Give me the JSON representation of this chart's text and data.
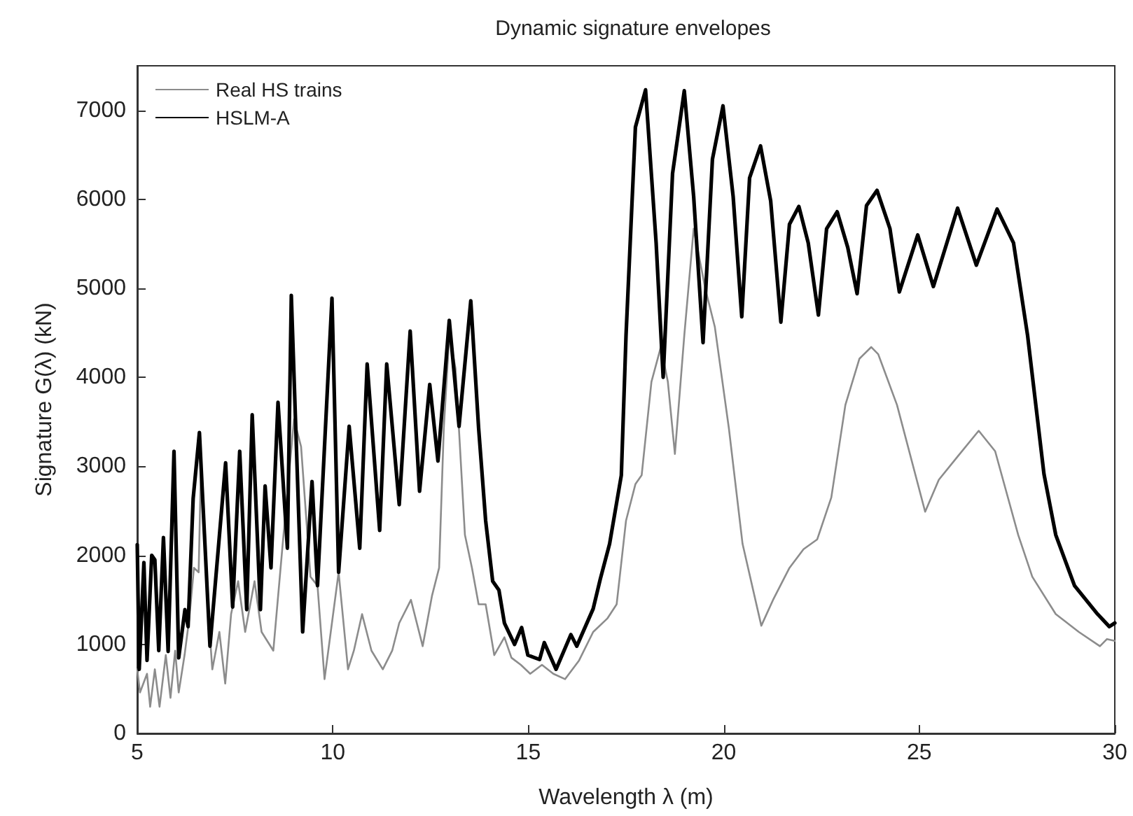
{
  "chart_data": {
    "type": "line",
    "title": "Dynamic signature envelopes",
    "xlabel": "Wavelength λ (m)",
    "ylabel": "Signature G(λ) (kN)",
    "xlim": [
      5,
      30
    ],
    "xticks": [
      5,
      10,
      15,
      20,
      25,
      30
    ],
    "ylim": [
      0,
      7500
    ],
    "yticks": [
      0,
      1000,
      2000,
      3000,
      4000,
      5000,
      6000,
      7000
    ],
    "grid": false,
    "legend": "top left",
    "marker": "none",
    "line_style": "solid",
    "series": [
      {
        "name": "Real HS trains",
        "color": "#8c8c8c",
        "x": [
          5.0,
          5.07,
          5.25,
          5.33,
          5.45,
          5.57,
          5.73,
          5.85,
          5.97,
          6.06,
          6.21,
          6.33,
          6.45,
          6.57,
          6.63,
          6.8,
          6.92,
          7.1,
          7.25,
          7.4,
          7.58,
          7.76,
          8.0,
          8.18,
          8.48,
          8.72,
          9.01,
          9.19,
          9.43,
          9.61,
          9.79,
          10.15,
          10.39,
          10.54,
          10.75,
          10.99,
          11.28,
          11.52,
          11.7,
          12.0,
          12.3,
          12.54,
          12.72,
          12.84,
          12.98,
          13.14,
          13.38,
          13.56,
          13.73,
          13.91,
          14.13,
          14.39,
          14.57,
          14.81,
          15.05,
          15.35,
          15.64,
          15.94,
          16.3,
          16.66,
          17.02,
          17.26,
          17.5,
          17.74,
          17.9,
          18.15,
          18.39,
          18.57,
          18.75,
          18.99,
          19.23,
          19.53,
          19.77,
          20.13,
          20.48,
          20.96,
          21.26,
          21.68,
          22.04,
          22.39,
          22.75,
          23.11,
          23.47,
          23.77,
          23.95,
          24.43,
          25.15,
          25.5,
          25.98,
          26.52,
          26.94,
          27.53,
          27.89,
          28.49,
          29.08,
          29.62,
          29.8,
          30.0
        ],
        "values": [
          720,
          460,
          670,
          300,
          720,
          300,
          880,
          400,
          930,
          460,
          880,
          1290,
          1860,
          1810,
          3010,
          1450,
          720,
          1140,
          560,
          1340,
          1710,
          1140,
          1710,
          1140,
          930,
          2130,
          3530,
          3220,
          1760,
          1660,
          610,
          1810,
          720,
          930,
          1340,
          930,
          720,
          930,
          1240,
          1500,
          980,
          1550,
          1860,
          3430,
          4470,
          4100,
          2230,
          1860,
          1450,
          1450,
          880,
          1080,
          850,
          770,
          670,
          770,
          670,
          610,
          820,
          1140,
          1290,
          1450,
          2390,
          2800,
          2900,
          3950,
          4340,
          3950,
          3140,
          4470,
          5670,
          4990,
          4570,
          3430,
          2130,
          1210,
          1500,
          1860,
          2070,
          2180,
          2650,
          3690,
          4210,
          4340,
          4260,
          3690,
          2490,
          2850,
          3110,
          3400,
          3170,
          2230,
          1760,
          1340,
          1140,
          980,
          1060,
          1040
        ]
      },
      {
        "name": "HSLM-A",
        "color": "#000000",
        "x": [
          5.0,
          5.05,
          5.17,
          5.25,
          5.37,
          5.45,
          5.55,
          5.67,
          5.79,
          5.94,
          6.06,
          6.22,
          6.3,
          6.43,
          6.59,
          6.86,
          7.26,
          7.44,
          7.62,
          7.8,
          7.94,
          8.15,
          8.27,
          8.42,
          8.6,
          8.84,
          8.94,
          9.23,
          9.47,
          9.61,
          9.98,
          10.15,
          10.42,
          10.69,
          10.88,
          11.2,
          11.38,
          11.7,
          11.98,
          12.22,
          12.48,
          12.69,
          12.98,
          13.23,
          13.53,
          13.73,
          13.91,
          14.09,
          14.25,
          14.39,
          14.65,
          14.83,
          14.99,
          15.29,
          15.41,
          15.71,
          16.09,
          16.24,
          16.66,
          16.84,
          17.08,
          17.38,
          17.5,
          17.74,
          18.0,
          18.27,
          18.45,
          18.69,
          18.99,
          19.23,
          19.47,
          19.71,
          19.98,
          20.24,
          20.46,
          20.66,
          20.94,
          21.2,
          21.46,
          21.68,
          21.92,
          22.16,
          22.42,
          22.63,
          22.9,
          23.17,
          23.41,
          23.65,
          23.92,
          24.25,
          24.49,
          24.96,
          25.36,
          25.98,
          26.46,
          26.99,
          27.41,
          27.77,
          28.19,
          28.49,
          28.97,
          29.56,
          29.86,
          30.0
        ],
        "values": [
          2120,
          720,
          1920,
          820,
          2000,
          1950,
          930,
          2200,
          920,
          3170,
          850,
          1390,
          1200,
          2640,
          3380,
          980,
          3040,
          1420,
          3170,
          1390,
          3580,
          1390,
          2780,
          1860,
          3720,
          2080,
          4920,
          1140,
          2830,
          1660,
          4890,
          1810,
          3450,
          2080,
          4150,
          2280,
          4150,
          2570,
          4520,
          2720,
          3920,
          3060,
          4640,
          3450,
          4860,
          3430,
          2390,
          1710,
          1610,
          1240,
          1000,
          1190,
          880,
          830,
          1020,
          720,
          1110,
          980,
          1400,
          1730,
          2130,
          2900,
          4470,
          6810,
          7230,
          5510,
          4000,
          6290,
          7220,
          6030,
          4390,
          6450,
          7050,
          6030,
          4680,
          6240,
          6600,
          5980,
          4620,
          5720,
          5920,
          5510,
          4700,
          5670,
          5860,
          5460,
          4940,
          5930,
          6100,
          5670,
          4960,
          5600,
          5020,
          5900,
          5260,
          5890,
          5510,
          4470,
          2910,
          2230,
          1660,
          1340,
          1200,
          1240
        ]
      }
    ]
  }
}
